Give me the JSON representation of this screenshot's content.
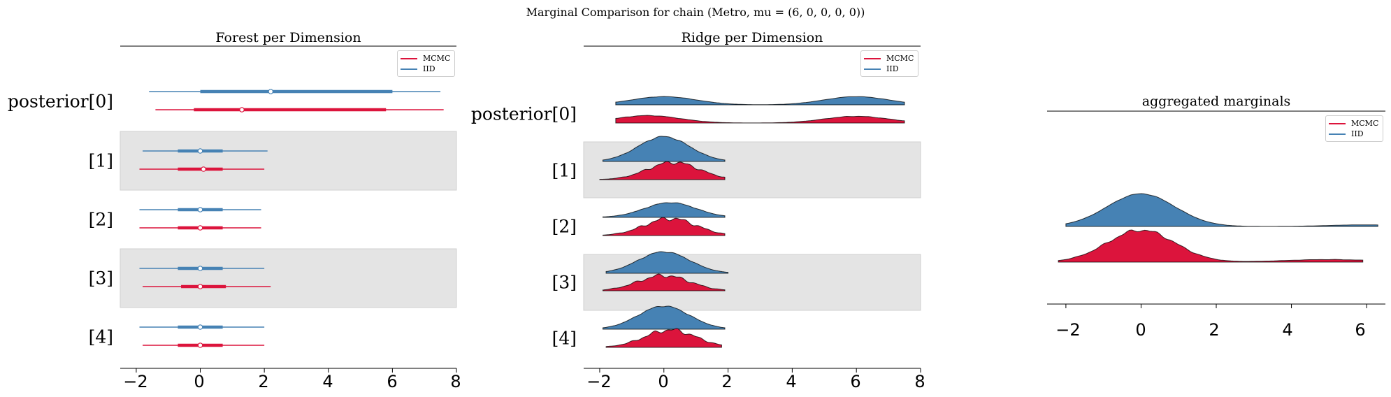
{
  "figure": {
    "suptitle": "Marginal Comparison for chain (Metro, mu = (6, 0, 0, 0, 0))"
  },
  "colors": {
    "mcmc": "#dc143c",
    "iid": "#4682b4",
    "band": "#e4e4e4"
  },
  "chart_data": [
    {
      "type": "forest",
      "title": "Forest per Dimension",
      "legend": [
        "MCMC",
        "IID"
      ],
      "legend_position": "top-right",
      "categories": [
        "posterior[0]",
        "[1]",
        "[2]",
        "[3]",
        "[4]"
      ],
      "xlim": [
        -2.5,
        8
      ],
      "xticks": [
        "−2",
        "0",
        "2",
        "4",
        "6",
        "8"
      ],
      "series": [
        {
          "name": "IID",
          "rows": [
            {
              "low": -1.6,
              "q1": 0.0,
              "mean": 2.2,
              "q3": 6.0,
              "high": 7.5
            },
            {
              "low": -1.8,
              "q1": -0.7,
              "mean": 0.0,
              "q3": 0.7,
              "high": 2.1
            },
            {
              "low": -1.9,
              "q1": -0.7,
              "mean": 0.0,
              "q3": 0.7,
              "high": 1.9
            },
            {
              "low": -1.9,
              "q1": -0.7,
              "mean": 0.0,
              "q3": 0.7,
              "high": 2.0
            },
            {
              "low": -1.9,
              "q1": -0.7,
              "mean": 0.0,
              "q3": 0.7,
              "high": 2.0
            }
          ]
        },
        {
          "name": "MCMC",
          "rows": [
            {
              "low": -1.4,
              "q1": -0.2,
              "mean": 1.3,
              "q3": 5.8,
              "high": 7.6
            },
            {
              "low": -1.9,
              "q1": -0.7,
              "mean": 0.1,
              "q3": 0.7,
              "high": 2.0
            },
            {
              "low": -1.9,
              "q1": -0.7,
              "mean": 0.0,
              "q3": 0.7,
              "high": 1.9
            },
            {
              "low": -1.8,
              "q1": -0.6,
              "mean": 0.0,
              "q3": 0.8,
              "high": 2.2
            },
            {
              "low": -1.8,
              "q1": -0.7,
              "mean": 0.0,
              "q3": 0.7,
              "high": 2.0
            }
          ]
        }
      ]
    },
    {
      "type": "ridge",
      "title": "Ridge per Dimension",
      "legend": [
        "MCMC",
        "IID"
      ],
      "legend_position": "top-right",
      "categories": [
        "posterior[0]",
        "[1]",
        "[2]",
        "[3]",
        "[4]"
      ],
      "xlim": [
        -2.5,
        8
      ],
      "xticks": [
        "−2",
        "0",
        "2",
        "4",
        "6",
        "8"
      ],
      "series": [
        {
          "name": "IID",
          "rows": [
            {
              "range": [
                -1.5,
                7.5
              ],
              "peaks": [
                [
                  0.0,
                  1.0,
                  1.0
                ],
                [
                  6.0,
                  1.0,
                  1.0
                ]
              ],
              "jitter": 0.02
            },
            {
              "range": [
                -1.9,
                1.9
              ],
              "peaks": [
                [
                  0.0,
                  0.8,
                  1.0
                ]
              ],
              "jitter": 0.03
            },
            {
              "range": [
                -1.9,
                1.9
              ],
              "peaks": [
                [
                  0.2,
                  0.8,
                  1.0
                ]
              ],
              "jitter": 0.03
            },
            {
              "range": [
                -1.8,
                2.0
              ],
              "peaks": [
                [
                  0.0,
                  0.8,
                  1.0
                ]
              ],
              "jitter": 0.03
            },
            {
              "range": [
                -1.9,
                1.9
              ],
              "peaks": [
                [
                  0.0,
                  0.8,
                  1.0
                ]
              ],
              "jitter": 0.03
            }
          ]
        },
        {
          "name": "MCMC",
          "rows": [
            {
              "range": [
                -1.5,
                7.5
              ],
              "peaks": [
                [
                  -0.5,
                  1.0,
                  1.0
                ],
                [
                  6.0,
                  1.0,
                  0.9
                ]
              ],
              "jitter": 0.04
            },
            {
              "range": [
                -2.0,
                1.9
              ],
              "peaks": [
                [
                  0.3,
                  0.8,
                  1.0
                ]
              ],
              "jitter": 0.12
            },
            {
              "range": [
                -1.9,
                1.9
              ],
              "peaks": [
                [
                  0.2,
                  0.8,
                  1.0
                ]
              ],
              "jitter": 0.14
            },
            {
              "range": [
                -1.9,
                1.9
              ],
              "peaks": [
                [
                  0.0,
                  0.8,
                  1.0
                ]
              ],
              "jitter": 0.14
            },
            {
              "range": [
                -1.8,
                1.8
              ],
              "peaks": [
                [
                  0.2,
                  0.8,
                  1.0
                ]
              ],
              "jitter": 0.14
            }
          ]
        }
      ]
    },
    {
      "type": "ridge",
      "title": "aggregated marginals",
      "legend": [
        "MCMC",
        "IID"
      ],
      "legend_position": "top-right",
      "xlim": [
        -2.5,
        6.5
      ],
      "xticks": [
        "−2",
        "0",
        "2",
        "4",
        "6"
      ],
      "series": [
        {
          "name": "IID",
          "range": [
            -2.0,
            6.3
          ],
          "peaks": [
            [
              0.0,
              0.9,
              1.0
            ],
            [
              6.0,
              1.0,
              0.05
            ]
          ],
          "jitter": 0.01
        },
        {
          "name": "MCMC",
          "range": [
            -2.2,
            5.9
          ],
          "peaks": [
            [
              0.0,
              0.9,
              1.0
            ],
            [
              5.0,
              1.2,
              0.08
            ]
          ],
          "jitter": 0.06
        }
      ]
    }
  ]
}
